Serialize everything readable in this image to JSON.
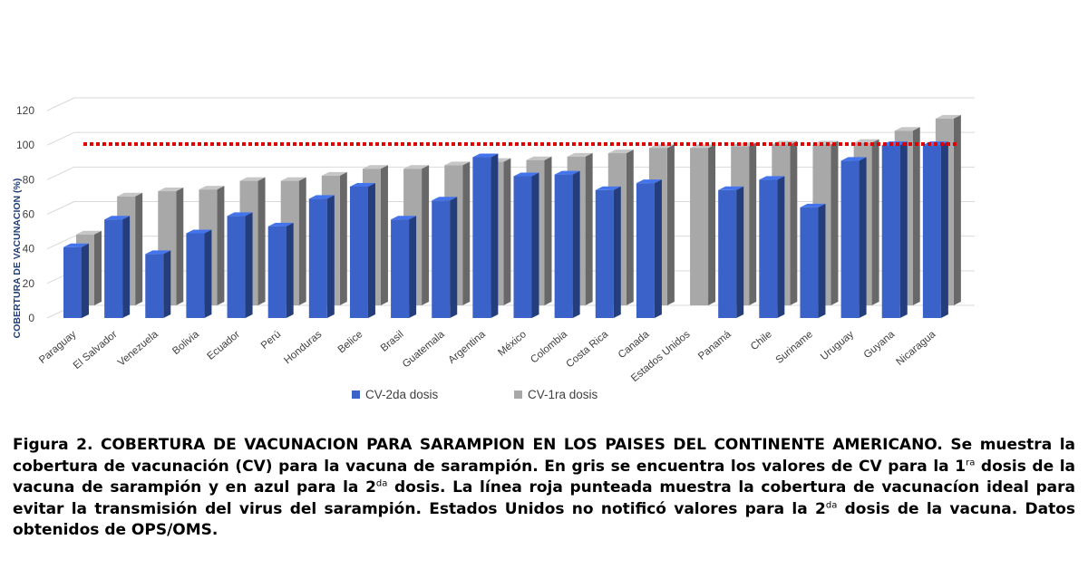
{
  "chart_data": {
    "type": "bar",
    "ylabel": "COBERTURA DE VACUNACION (%)",
    "xlabel": "",
    "ylim": [
      0,
      120
    ],
    "yticks": [
      0,
      20,
      40,
      60,
      80,
      100,
      120
    ],
    "grid": true,
    "legend_position": "bottom",
    "reference_line": {
      "value": 98,
      "color": "#e00000",
      "style": "dotted"
    },
    "categories": [
      "Paraguay",
      "El Salvador",
      "Venezuela",
      "Bolivia",
      "Ecuador",
      "Perú",
      "Honduras",
      "Belice",
      "Brasil",
      "Guatemala",
      "Argentina",
      "México",
      "Colombia",
      "Costa Rica",
      "Canada",
      "Estados Unidos",
      "Panamá",
      "Chile",
      "Suriname",
      "Uruguay",
      "Guyana",
      "Nicaragua"
    ],
    "series": [
      {
        "name": "CV-2da dosis",
        "color": "#3a62c8",
        "values": [
          41,
          57,
          37,
          49,
          59,
          53,
          69,
          76,
          57,
          68,
          93,
          82,
          83,
          74,
          78,
          null,
          74,
          80,
          64,
          91,
          100,
          100
        ]
      },
      {
        "name": "CV-1ra dosis",
        "color": "#a8a8a8",
        "values": [
          41,
          63,
          66,
          67,
          72,
          72,
          75,
          79,
          79,
          81,
          83,
          84,
          86,
          88,
          91,
          91,
          92,
          93,
          93,
          94,
          101,
          108
        ]
      }
    ]
  },
  "caption": {
    "lead": "Figura 2. COBERTURA DE VACUNACION PARA SARAMPION EN LOS PAISES DEL CONTINENTE AMERICANO.",
    "part1": " Se muestra la cobertura de vacunación (CV) para la vacuna de sarampión. En gris se encuentra los valores de CV para la 1",
    "sup1": "ra",
    "part2": " dosis de la vacuna de sarampión y en azul para la 2",
    "sup2": "da",
    "part3": " dosis. La línea roja punteada muestra la cobertura de vacunacíon ideal para evitar la transmisión del virus del sarampión. Estados Unidos no notificó valores para la 2",
    "sup3": "da",
    "part4": " dosis de la vacuna. Datos obtenidos de OPS/OMS."
  }
}
